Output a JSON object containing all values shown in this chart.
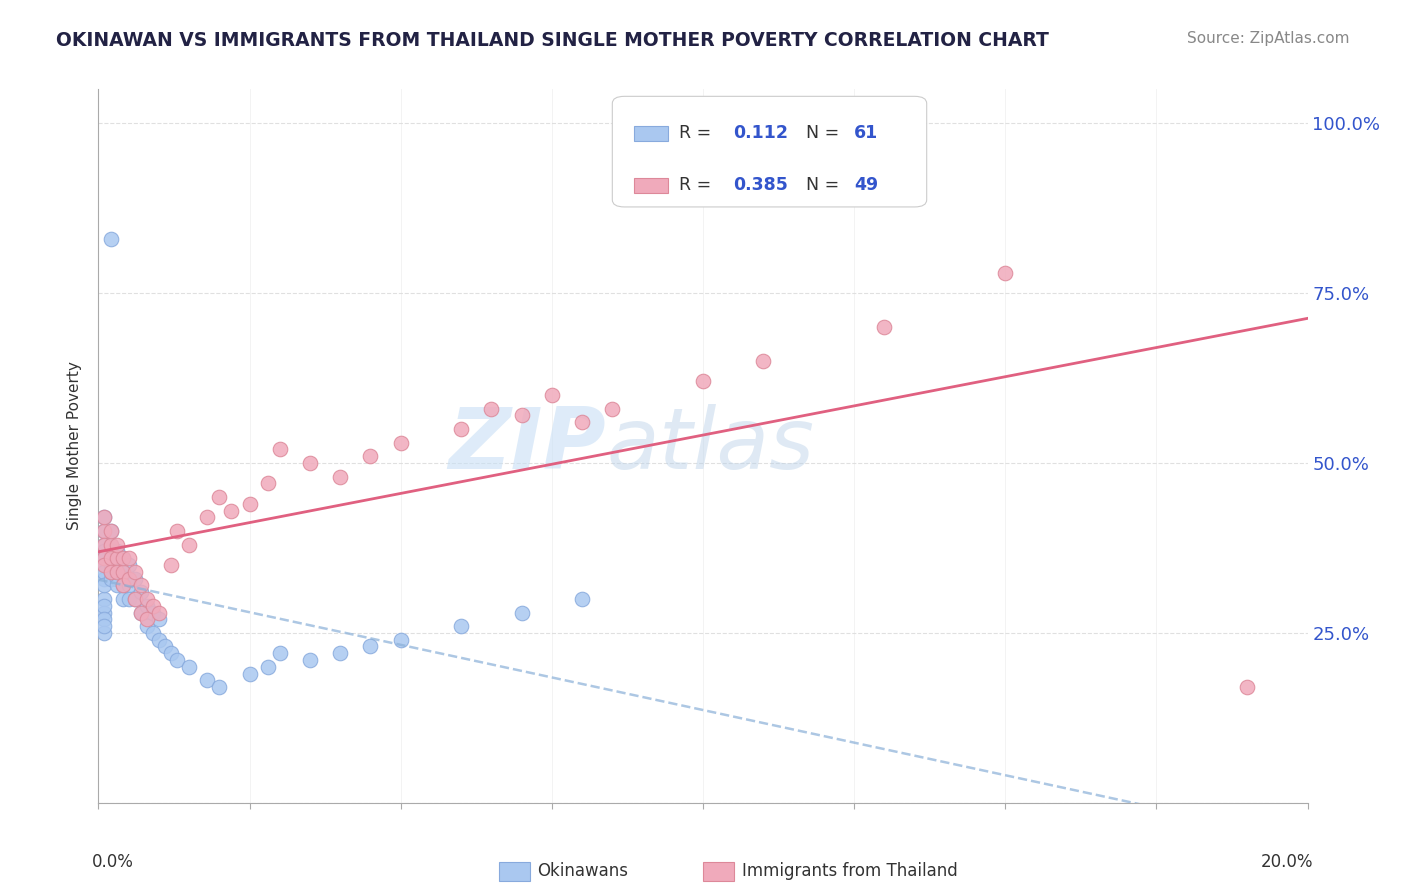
{
  "title": "OKINAWAN VS IMMIGRANTS FROM THAILAND SINGLE MOTHER POVERTY CORRELATION CHART",
  "source": "Source: ZipAtlas.com",
  "ylabel": "Single Mother Poverty",
  "xlim": [
    0.0,
    0.2
  ],
  "ylim": [
    0.0,
    1.05
  ],
  "series1_name": "Okinawans",
  "series2_name": "Immigrants from Thailand",
  "series1_color": "#aac8f0",
  "series2_color": "#f0aabb",
  "series1_edge": "#88aadd",
  "series2_edge": "#dd8899",
  "series1_R": 0.112,
  "series1_N": 61,
  "series2_R": 0.385,
  "series2_N": 49,
  "series1_line_color": "#8ab0d8",
  "series2_line_color": "#e06080",
  "watermark_zip": "ZIP",
  "watermark_atlas": "atlas",
  "bg_color": "#ffffff",
  "grid_color": "#dddddd",
  "ytick_color": "#3355cc",
  "title_color": "#222244",
  "source_color": "#888888"
}
